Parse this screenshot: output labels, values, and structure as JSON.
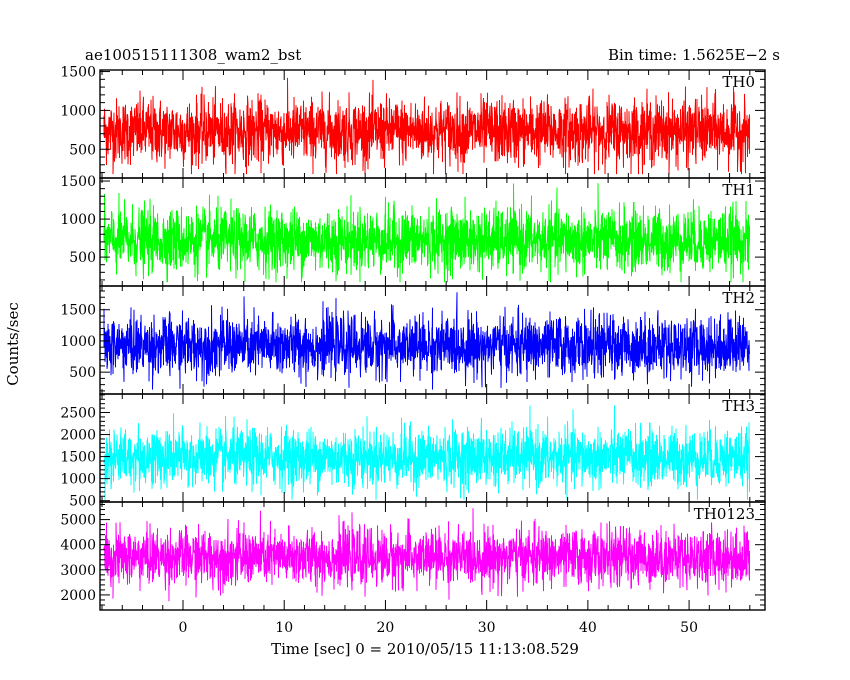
{
  "header": {
    "title_left": "ae100515111308_wam2_bst",
    "title_right": "Bin time: 1.5625E−2 s"
  },
  "chart_data": {
    "type": "line",
    "title": "ae100515111308_wam2_bst",
    "subtitle": "Bin time: 1.5625E−2 s",
    "xlabel": "Time [sec] 0 = 2010/05/15 11:13:08.529",
    "ylabel": "Counts/sec",
    "xlim": [
      -8.2,
      57.5
    ],
    "data_xrange": [
      -7.8,
      56.0
    ],
    "x_ticks": [
      0,
      10,
      20,
      30,
      40,
      50
    ],
    "x_minor_step": 2,
    "grid": false,
    "panels": [
      {
        "name": "TH0",
        "color": "#ff0000",
        "ylim": [
          130,
          1520
        ],
        "y_ticks": [
          500,
          1000,
          1500
        ],
        "y_minor_step": 100,
        "baseline": 730,
        "sigma": 210,
        "min": 180,
        "max": 1480
      },
      {
        "name": "TH1",
        "color": "#00ff00",
        "ylim": [
          120,
          1540
        ],
        "y_ticks": [
          500,
          1000,
          1500
        ],
        "y_minor_step": 100,
        "baseline": 720,
        "sigma": 210,
        "min": 170,
        "max": 1480
      },
      {
        "name": "TH2",
        "color": "#0000ff",
        "ylim": [
          150,
          1880
        ],
        "y_ticks": [
          500,
          1000,
          1500
        ],
        "y_minor_step": 100,
        "baseline": 920,
        "sigma": 240,
        "min": 220,
        "max": 1780
      },
      {
        "name": "TH3",
        "color": "#00ffff",
        "ylim": [
          470,
          2920
        ],
        "y_ticks": [
          500,
          1000,
          1500,
          2000,
          2500
        ],
        "y_minor_step": 100,
        "baseline": 1480,
        "sigma": 330,
        "min": 520,
        "max": 2780
      },
      {
        "name": "TH0123",
        "color": "#ff00ff",
        "ylim": [
          1400,
          5700
        ],
        "y_ticks": [
          2000,
          3000,
          4000,
          5000
        ],
        "y_minor_step": 200,
        "baseline": 3500,
        "sigma": 560,
        "min": 1600,
        "max": 5450
      }
    ]
  }
}
